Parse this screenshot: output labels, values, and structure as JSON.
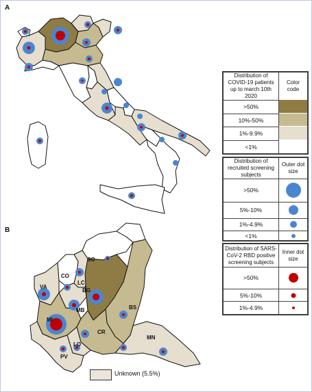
{
  "panels": {
    "a": "A",
    "b": "B"
  },
  "colors": {
    "over50": "#8f7c44",
    "p10_50": "#c6ba90",
    "p1_9": "#e6dece",
    "under1": "#ffffff",
    "outer_dot": "#4a86cf",
    "inner_dot": "#c00000",
    "unknown": "#ebe5dc"
  },
  "legend_patients": {
    "title": "Distribution of COVID-19 patients up to march 10th 2020",
    "col_header": "Color code",
    "rows": [
      ">50%",
      "10%-50%",
      "1%-9.9%",
      "<1%"
    ]
  },
  "legend_outer": {
    "title": "Distribution of recruited screening subjects",
    "col_header": "Outer dot size",
    "rows": [
      ">50%",
      "5%-10%",
      "1%-4.9%",
      "<1%"
    ]
  },
  "legend_inner": {
    "title": "Distribution of SARS-CoV-2 RBD positive screening subjects",
    "col_header": "Inner dot size",
    "rows": [
      ">50%",
      "5%-10%",
      "1%-4.9%"
    ]
  },
  "provinces": [
    "SO",
    "CO",
    "LC",
    "VA",
    "BG",
    "MB",
    "BS",
    "MI",
    "CR",
    "LO",
    "MN",
    "PV"
  ],
  "unknown_label": "Unknown (5.5%)"
}
